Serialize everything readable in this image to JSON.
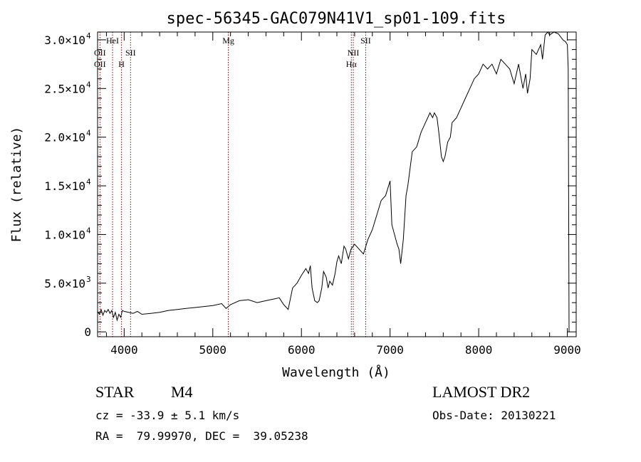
{
  "chart_data": {
    "type": "line",
    "title": "spec-56345-GAC079N41V1_sp01-109.fits",
    "xlabel": "Wavelength (Å)",
    "ylabel": "Flux (relative)",
    "xlim": [
      3700,
      9100
    ],
    "ylim": [
      -500,
      30800
    ],
    "x_ticks": [
      {
        "value": 4000,
        "label": "4000"
      },
      {
        "value": 5000,
        "label": "5000"
      },
      {
        "value": 6000,
        "label": "6000"
      },
      {
        "value": 7000,
        "label": "7000"
      },
      {
        "value": 8000,
        "label": "8000"
      },
      {
        "value": 9000,
        "label": "9000"
      }
    ],
    "y_ticks": [
      {
        "value": 0,
        "mant": "0",
        "exp": ""
      },
      {
        "value": 5000,
        "mant": "5.0×10",
        "exp": "3"
      },
      {
        "value": 10000,
        "mant": "1.0×10",
        "exp": "4"
      },
      {
        "value": 15000,
        "mant": "1.5×10",
        "exp": "4"
      },
      {
        "value": 20000,
        "mant": "2.0×10",
        "exp": "4"
      },
      {
        "value": 25000,
        "mant": "2.5×10",
        "exp": "4"
      },
      {
        "value": 30000,
        "mant": "3.0×10",
        "exp": "4"
      }
    ],
    "series": [
      {
        "color": "#000000",
        "x": [
          3700,
          3720,
          3740,
          3760,
          3780,
          3800,
          3820,
          3840,
          3860,
          3880,
          3900,
          3920,
          3940,
          3960,
          3980,
          4000,
          4050,
          4100,
          4150,
          4200,
          4300,
          4400,
          4500,
          4600,
          4700,
          4800,
          4900,
          5000,
          5100,
          5150,
          5200,
          5300,
          5400,
          5500,
          5600,
          5700,
          5750,
          5800,
          5850,
          5900,
          5950,
          6000,
          6050,
          6080,
          6100,
          6120,
          6150,
          6180,
          6200,
          6230,
          6250,
          6280,
          6300,
          6320,
          6350,
          6380,
          6400,
          6420,
          6450,
          6480,
          6500,
          6530,
          6560,
          6600,
          6650,
          6700,
          6750,
          6800,
          6850,
          6900,
          6950,
          7000,
          7020,
          7050,
          7080,
          7100,
          7120,
          7150,
          7180,
          7200,
          7250,
          7300,
          7350,
          7400,
          7450,
          7480,
          7500,
          7530,
          7550,
          7580,
          7600,
          7620,
          7650,
          7680,
          7700,
          7750,
          7800,
          7850,
          7900,
          7950,
          8000,
          8050,
          8100,
          8150,
          8200,
          8250,
          8300,
          8350,
          8400,
          8450,
          8480,
          8500,
          8530,
          8550,
          8580,
          8600,
          8650,
          8700,
          8720,
          8750,
          8780,
          8800,
          8850,
          8900,
          8950,
          8980,
          9000,
          9010,
          9020
        ],
        "y": [
          2100,
          1800,
          2300,
          1700,
          2200,
          2000,
          2300,
          1900,
          2200,
          1500,
          2000,
          1200,
          1800,
          1500,
          2200,
          2100,
          2000,
          1900,
          2100,
          1800,
          1900,
          2000,
          2200,
          2300,
          2400,
          2500,
          2600,
          2700,
          2900,
          2400,
          2800,
          3200,
          3300,
          3000,
          3200,
          3400,
          3500,
          2800,
          2300,
          4500,
          5000,
          5800,
          6500,
          6000,
          6800,
          4500,
          3200,
          3000,
          3200,
          4500,
          6200,
          5600,
          4500,
          5200,
          4800,
          6000,
          7200,
          7800,
          7000,
          8800,
          8500,
          7500,
          8500,
          9000,
          8500,
          8000,
          9500,
          10500,
          12000,
          13500,
          14000,
          15500,
          11000,
          10000,
          9000,
          8500,
          7000,
          9500,
          14000,
          15000,
          18500,
          19000,
          20500,
          21500,
          22500,
          22000,
          22500,
          22000,
          20500,
          18000,
          17500,
          18000,
          19500,
          20000,
          21500,
          22000,
          23000,
          24000,
          25000,
          26000,
          26500,
          27500,
          27000,
          27500,
          26500,
          28000,
          27500,
          27000,
          25500,
          27500,
          26000,
          25000,
          26500,
          24500,
          26000,
          29000,
          28500,
          29500,
          28000,
          30500,
          30800,
          30500,
          30800,
          30600,
          30000,
          29800,
          29500,
          27000,
          0
        ]
      }
    ],
    "lines": [
      {
        "wave": 3727,
        "labels": [
          "OII",
          "OII"
        ],
        "color": "#8b0000"
      },
      {
        "wave": 3869,
        "labels": [],
        "color": "#8b0000"
      },
      {
        "wave": 3970,
        "labels": [
          "H"
        ],
        "color": "#8b0000"
      },
      {
        "wave": 4072,
        "labels": [
          "SII"
        ],
        "color": "#8b0000"
      },
      {
        "wave": 5175,
        "labels": [
          "Mg"
        ],
        "color": "#8b0000"
      },
      {
        "wave": 6563,
        "labels": [
          "Hα"
        ],
        "color": "#8b0000"
      },
      {
        "wave": 6585,
        "labels": [
          "NII"
        ],
        "color": "#8b0000"
      },
      {
        "wave": 6725,
        "labels": [
          "SII"
        ],
        "color": "#8b0000"
      }
    ],
    "hei_label": "HeI",
    "grid": false
  },
  "info": {
    "object_class": "STAR",
    "subclass": "M4",
    "survey": "LAMOST DR2",
    "redshift": "cz = -33.9 ± 5.1 km/s",
    "obs_date": "Obs-Date: 20130221",
    "coords": "RA =  79.99970, DEC =  39.05238"
  }
}
